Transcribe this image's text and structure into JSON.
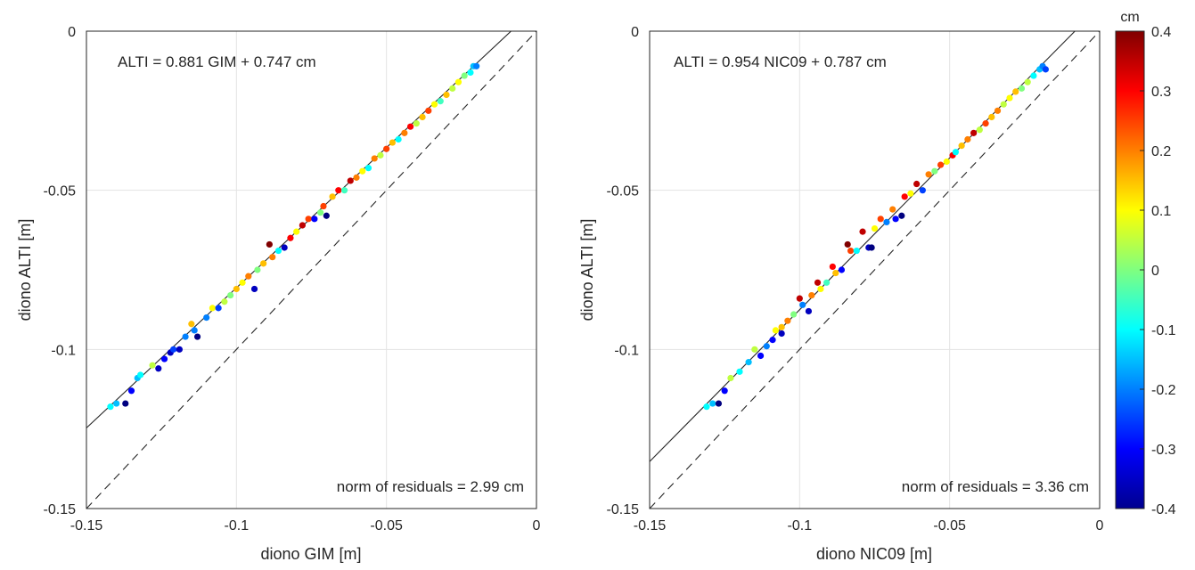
{
  "colorbar": {
    "unit": "cm",
    "ticks": [
      "0.4",
      "0.3",
      "0.2",
      "0.1",
      "0",
      "-0.1",
      "-0.2",
      "-0.3",
      "-0.4"
    ],
    "range": [
      -0.4,
      0.4
    ],
    "colormap": "jet"
  },
  "chart_data": [
    {
      "type": "scatter",
      "xlabel": "diono GIM [m]",
      "ylabel": "diono ALTI [m]",
      "xlim": [
        -0.15,
        0
      ],
      "ylim": [
        -0.15,
        0
      ],
      "xticks": [
        "-0.15",
        "-0.1",
        "-0.05",
        "0"
      ],
      "yticks": [
        "-0.15",
        "-0.1",
        "-0.05",
        "0"
      ],
      "grid": true,
      "fit": {
        "slope": 0.881,
        "intercept_m": 0.00747,
        "label": "ALTI = 0.881 GIM + 0.747 cm"
      },
      "identity_line": true,
      "residuals_label": "norm of residuals = 2.99 cm",
      "points": [
        {
          "x": -0.142,
          "y": -0.118,
          "c": -0.1
        },
        {
          "x": -0.14,
          "y": -0.117,
          "c": -0.15
        },
        {
          "x": -0.137,
          "y": -0.117,
          "c": -0.4
        },
        {
          "x": -0.135,
          "y": -0.113,
          "c": -0.3
        },
        {
          "x": -0.133,
          "y": -0.109,
          "c": -0.15
        },
        {
          "x": -0.132,
          "y": -0.108,
          "c": -0.1
        },
        {
          "x": -0.128,
          "y": -0.105,
          "c": 0.05
        },
        {
          "x": -0.126,
          "y": -0.106,
          "c": -0.35
        },
        {
          "x": -0.124,
          "y": -0.103,
          "c": -0.3
        },
        {
          "x": -0.122,
          "y": -0.101,
          "c": -0.35
        },
        {
          "x": -0.121,
          "y": -0.1,
          "c": -0.25
        },
        {
          "x": -0.119,
          "y": -0.1,
          "c": -0.35
        },
        {
          "x": -0.117,
          "y": -0.096,
          "c": -0.2
        },
        {
          "x": -0.115,
          "y": -0.092,
          "c": 0.15
        },
        {
          "x": -0.114,
          "y": -0.094,
          "c": -0.2
        },
        {
          "x": -0.113,
          "y": -0.096,
          "c": -0.4
        },
        {
          "x": -0.11,
          "y": -0.09,
          "c": -0.2
        },
        {
          "x": -0.108,
          "y": -0.087,
          "c": 0.1
        },
        {
          "x": -0.106,
          "y": -0.087,
          "c": -0.25
        },
        {
          "x": -0.104,
          "y": -0.085,
          "c": 0.05
        },
        {
          "x": -0.102,
          "y": -0.083,
          "c": 0.0
        },
        {
          "x": -0.1,
          "y": -0.081,
          "c": 0.15
        },
        {
          "x": -0.098,
          "y": -0.079,
          "c": 0.1
        },
        {
          "x": -0.096,
          "y": -0.077,
          "c": 0.2
        },
        {
          "x": -0.094,
          "y": -0.081,
          "c": -0.35
        },
        {
          "x": -0.093,
          "y": -0.075,
          "c": 0.0
        },
        {
          "x": -0.091,
          "y": -0.073,
          "c": 0.15
        },
        {
          "x": -0.089,
          "y": -0.067,
          "c": 0.4
        },
        {
          "x": -0.088,
          "y": -0.071,
          "c": 0.2
        },
        {
          "x": -0.086,
          "y": -0.069,
          "c": -0.1
        },
        {
          "x": -0.084,
          "y": -0.068,
          "c": -0.35
        },
        {
          "x": -0.082,
          "y": -0.065,
          "c": 0.3
        },
        {
          "x": -0.08,
          "y": -0.063,
          "c": 0.1
        },
        {
          "x": -0.078,
          "y": -0.061,
          "c": 0.35
        },
        {
          "x": -0.076,
          "y": -0.059,
          "c": 0.25
        },
        {
          "x": -0.074,
          "y": -0.059,
          "c": -0.3
        },
        {
          "x": -0.072,
          "y": -0.057,
          "c": 0.0
        },
        {
          "x": -0.071,
          "y": -0.055,
          "c": 0.25
        },
        {
          "x": -0.07,
          "y": -0.058,
          "c": -0.4
        },
        {
          "x": -0.068,
          "y": -0.052,
          "c": 0.15
        },
        {
          "x": -0.066,
          "y": -0.05,
          "c": 0.3
        },
        {
          "x": -0.064,
          "y": -0.05,
          "c": -0.05
        },
        {
          "x": -0.062,
          "y": -0.047,
          "c": 0.35
        },
        {
          "x": -0.06,
          "y": -0.046,
          "c": 0.2
        },
        {
          "x": -0.058,
          "y": -0.044,
          "c": 0.1
        },
        {
          "x": -0.056,
          "y": -0.043,
          "c": -0.1
        },
        {
          "x": -0.054,
          "y": -0.04,
          "c": 0.2
        },
        {
          "x": -0.052,
          "y": -0.039,
          "c": 0.05
        },
        {
          "x": -0.05,
          "y": -0.037,
          "c": 0.25
        },
        {
          "x": -0.048,
          "y": -0.035,
          "c": 0.15
        },
        {
          "x": -0.046,
          "y": -0.034,
          "c": -0.1
        },
        {
          "x": -0.044,
          "y": -0.032,
          "c": 0.2
        },
        {
          "x": -0.042,
          "y": -0.03,
          "c": 0.3
        },
        {
          "x": -0.04,
          "y": -0.029,
          "c": 0.05
        },
        {
          "x": -0.038,
          "y": -0.027,
          "c": 0.15
        },
        {
          "x": -0.036,
          "y": -0.025,
          "c": 0.25
        },
        {
          "x": -0.034,
          "y": -0.023,
          "c": 0.1
        },
        {
          "x": -0.032,
          "y": -0.022,
          "c": -0.05
        },
        {
          "x": -0.03,
          "y": -0.02,
          "c": 0.15
        },
        {
          "x": -0.028,
          "y": -0.018,
          "c": 0.05
        },
        {
          "x": -0.026,
          "y": -0.016,
          "c": 0.1
        },
        {
          "x": -0.024,
          "y": -0.014,
          "c": 0.0
        },
        {
          "x": -0.022,
          "y": -0.013,
          "c": -0.1
        },
        {
          "x": -0.021,
          "y": -0.011,
          "c": -0.15
        },
        {
          "x": -0.02,
          "y": -0.011,
          "c": -0.2
        }
      ]
    },
    {
      "type": "scatter",
      "xlabel": "diono NIC09 [m]",
      "ylabel": "diono ALTI [m]",
      "xlim": [
        -0.15,
        0
      ],
      "ylim": [
        -0.15,
        0
      ],
      "xticks": [
        "-0.15",
        "-0.1",
        "-0.05",
        "0"
      ],
      "yticks": [
        "-0.15",
        "-0.1",
        "-0.05",
        "0"
      ],
      "grid": true,
      "fit": {
        "slope": 0.954,
        "intercept_m": 0.00787,
        "label": "ALTI = 0.954 NIC09 + 0.787 cm"
      },
      "identity_line": true,
      "residuals_label": "norm of residuals = 3.36 cm",
      "points": [
        {
          "x": -0.131,
          "y": -0.118,
          "c": -0.1
        },
        {
          "x": -0.129,
          "y": -0.117,
          "c": -0.15
        },
        {
          "x": -0.127,
          "y": -0.117,
          "c": -0.4
        },
        {
          "x": -0.125,
          "y": -0.113,
          "c": -0.3
        },
        {
          "x": -0.123,
          "y": -0.109,
          "c": 0.05
        },
        {
          "x": -0.12,
          "y": -0.107,
          "c": -0.1
        },
        {
          "x": -0.117,
          "y": -0.104,
          "c": -0.15
        },
        {
          "x": -0.115,
          "y": -0.1,
          "c": 0.05
        },
        {
          "x": -0.113,
          "y": -0.102,
          "c": -0.3
        },
        {
          "x": -0.111,
          "y": -0.099,
          "c": -0.2
        },
        {
          "x": -0.109,
          "y": -0.097,
          "c": -0.3
        },
        {
          "x": -0.108,
          "y": -0.094,
          "c": 0.1
        },
        {
          "x": -0.106,
          "y": -0.095,
          "c": -0.35
        },
        {
          "x": -0.106,
          "y": -0.093,
          "c": 0.15
        },
        {
          "x": -0.104,
          "y": -0.091,
          "c": 0.2
        },
        {
          "x": -0.102,
          "y": -0.089,
          "c": 0.0
        },
        {
          "x": -0.1,
          "y": -0.084,
          "c": 0.35
        },
        {
          "x": -0.099,
          "y": -0.086,
          "c": -0.2
        },
        {
          "x": -0.097,
          "y": -0.088,
          "c": -0.35
        },
        {
          "x": -0.096,
          "y": -0.083,
          "c": 0.2
        },
        {
          "x": -0.094,
          "y": -0.079,
          "c": 0.35
        },
        {
          "x": -0.093,
          "y": -0.081,
          "c": 0.1
        },
        {
          "x": -0.091,
          "y": -0.079,
          "c": -0.05
        },
        {
          "x": -0.089,
          "y": -0.074,
          "c": 0.3
        },
        {
          "x": -0.088,
          "y": -0.076,
          "c": 0.15
        },
        {
          "x": -0.086,
          "y": -0.075,
          "c": -0.3
        },
        {
          "x": -0.084,
          "y": -0.067,
          "c": 0.4
        },
        {
          "x": -0.083,
          "y": -0.069,
          "c": 0.25
        },
        {
          "x": -0.081,
          "y": -0.069,
          "c": -0.1
        },
        {
          "x": -0.079,
          "y": -0.063,
          "c": 0.35
        },
        {
          "x": -0.077,
          "y": -0.068,
          "c": -0.35
        },
        {
          "x": -0.076,
          "y": -0.068,
          "c": -0.4
        },
        {
          "x": -0.075,
          "y": -0.062,
          "c": 0.1
        },
        {
          "x": -0.073,
          "y": -0.059,
          "c": 0.25
        },
        {
          "x": -0.071,
          "y": -0.06,
          "c": -0.2
        },
        {
          "x": -0.069,
          "y": -0.056,
          "c": 0.2
        },
        {
          "x": -0.068,
          "y": -0.059,
          "c": -0.3
        },
        {
          "x": -0.066,
          "y": -0.058,
          "c": -0.4
        },
        {
          "x": -0.065,
          "y": -0.052,
          "c": 0.3
        },
        {
          "x": -0.063,
          "y": -0.051,
          "c": 0.1
        },
        {
          "x": -0.061,
          "y": -0.048,
          "c": 0.35
        },
        {
          "x": -0.059,
          "y": -0.05,
          "c": -0.25
        },
        {
          "x": -0.057,
          "y": -0.045,
          "c": 0.2
        },
        {
          "x": -0.055,
          "y": -0.044,
          "c": 0.0
        },
        {
          "x": -0.053,
          "y": -0.042,
          "c": 0.25
        },
        {
          "x": -0.051,
          "y": -0.041,
          "c": 0.1
        },
        {
          "x": -0.049,
          "y": -0.039,
          "c": 0.3
        },
        {
          "x": -0.048,
          "y": -0.038,
          "c": -0.1
        },
        {
          "x": -0.046,
          "y": -0.036,
          "c": 0.15
        },
        {
          "x": -0.044,
          "y": -0.034,
          "c": 0.2
        },
        {
          "x": -0.042,
          "y": -0.032,
          "c": 0.35
        },
        {
          "x": -0.04,
          "y": -0.031,
          "c": 0.05
        },
        {
          "x": -0.038,
          "y": -0.029,
          "c": 0.25
        },
        {
          "x": -0.036,
          "y": -0.027,
          "c": 0.15
        },
        {
          "x": -0.034,
          "y": -0.025,
          "c": 0.2
        },
        {
          "x": -0.032,
          "y": -0.023,
          "c": 0.05
        },
        {
          "x": -0.03,
          "y": -0.021,
          "c": 0.1
        },
        {
          "x": -0.028,
          "y": -0.019,
          "c": 0.15
        },
        {
          "x": -0.026,
          "y": -0.018,
          "c": 0.0
        },
        {
          "x": -0.024,
          "y": -0.016,
          "c": 0.05
        },
        {
          "x": -0.022,
          "y": -0.014,
          "c": -0.1
        },
        {
          "x": -0.02,
          "y": -0.012,
          "c": -0.15
        },
        {
          "x": -0.019,
          "y": -0.011,
          "c": -0.2
        },
        {
          "x": -0.018,
          "y": -0.012,
          "c": -0.25
        }
      ]
    }
  ]
}
